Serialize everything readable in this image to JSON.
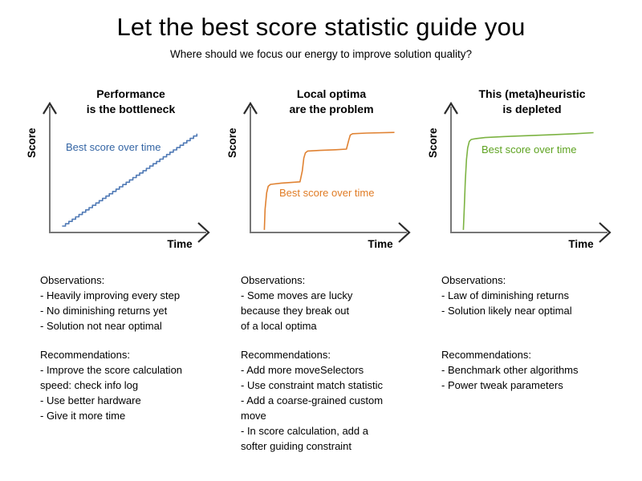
{
  "slide": {
    "title": "Let the best score statistic guide you",
    "subtitle": "Where should we focus our energy to improve solution quality?",
    "background_color": "#ffffff",
    "text_color": "#000000",
    "axis_line_color": "#777777",
    "axis_arrow_color": "#2b2b2b"
  },
  "panels": [
    {
      "heading_line1": "Performance",
      "heading_line2": "is the bottleneck",
      "ylabel": "Score",
      "xlabel": "Time",
      "curve_label": "Best score over time",
      "curve_color": "#4f79b5",
      "label_color": "#3465a4",
      "observations": [
        "Observations:",
        "- Heavily improving every step",
        "- No diminishing returns yet",
        "- Solution not near optimal"
      ],
      "recommendations": [
        "Recommendations:",
        "- Improve the score calculation",
        "speed: check info log",
        "- Use better hardware",
        "- Give it more time"
      ]
    },
    {
      "heading_line1": "Local optima",
      "heading_line2": "are the problem",
      "ylabel": "Score",
      "xlabel": "Time",
      "curve_label": "Best score over time",
      "curve_color": "#e08232",
      "label_color": "#e07c25",
      "observations": [
        "Observations:",
        "- Some moves are lucky",
        "because they break out",
        "of a local optima"
      ],
      "recommendations": [
        "Recommendations:",
        "- Add more moveSelectors",
        "- Use constraint match statistic",
        "- Add a coarse-grained custom",
        "move",
        "- In score calculation, add a",
        "softer guiding constraint"
      ]
    },
    {
      "heading_line1": "This (meta)heuristic",
      "heading_line2": "is depleted",
      "ylabel": "Score",
      "xlabel": "Time",
      "curve_label": "Best score over time",
      "curve_color": "#7cb342",
      "label_color": "#5ea321",
      "observations": [
        "Observations:",
        "- Law of diminishing returns",
        "- Solution likely near optimal"
      ],
      "recommendations": [
        "Recommendations:",
        "- Benchmark other algorithms",
        "- Power tweak parameters"
      ]
    }
  ],
  "chart_data": [
    {
      "type": "line",
      "title": "Performance is the bottleneck",
      "xlabel": "Time",
      "ylabel": "Score",
      "xlim": [
        0,
        100
      ],
      "ylim": [
        0,
        100
      ],
      "grid": false,
      "legend_position": "inline",
      "series": [
        {
          "name": "Best score over time",
          "color": "#4f79b5",
          "style": "staircase",
          "steps": 40,
          "points": [
            [
              8,
              5
            ],
            [
              95,
              77
            ]
          ]
        }
      ]
    },
    {
      "type": "line",
      "title": "Local optima are the problem",
      "xlabel": "Time",
      "ylabel": "Score",
      "xlim": [
        0,
        100
      ],
      "ylim": [
        0,
        100
      ],
      "grid": false,
      "legend_position": "inline",
      "series": [
        {
          "name": "Best score over time",
          "color": "#e08232",
          "style": "piecewise",
          "points": [
            [
              9,
              2
            ],
            [
              9.5,
              18
            ],
            [
              10.5,
              31
            ],
            [
              11.5,
              36
            ],
            [
              13,
              37.5
            ],
            [
              20,
              38.5
            ],
            [
              32,
              39.5
            ],
            [
              33.5,
              48
            ],
            [
              34.5,
              58
            ],
            [
              35.5,
              62
            ],
            [
              37,
              63.5
            ],
            [
              45,
              64
            ],
            [
              55,
              64.5
            ],
            [
              62,
              65
            ],
            [
              63.5,
              72
            ],
            [
              64.5,
              76
            ],
            [
              66,
              77
            ],
            [
              75,
              77.5
            ],
            [
              93,
              78
            ]
          ]
        }
      ]
    },
    {
      "type": "line",
      "title": "This (meta)heuristic is depleted",
      "xlabel": "Time",
      "ylabel": "Score",
      "xlim": [
        0,
        100
      ],
      "ylim": [
        0,
        100
      ],
      "grid": false,
      "legend_position": "inline",
      "series": [
        {
          "name": "Best score over time",
          "color": "#7cb342",
          "style": "piecewise",
          "points": [
            [
              8,
              2
            ],
            [
              8.6,
              20
            ],
            [
              9.2,
              40
            ],
            [
              10,
              57
            ],
            [
              10.8,
              66
            ],
            [
              11.8,
              71
            ],
            [
              13,
              72.5
            ],
            [
              16,
              73.2
            ],
            [
              22,
              74
            ],
            [
              35,
              74.8
            ],
            [
              50,
              75.5
            ],
            [
              65,
              76.2
            ],
            [
              80,
              77
            ],
            [
              92,
              77.8
            ]
          ]
        }
      ]
    }
  ]
}
